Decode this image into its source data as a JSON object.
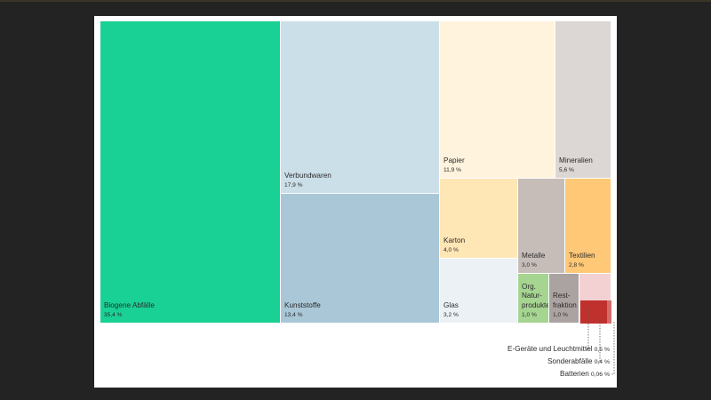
{
  "chart_data": {
    "type": "treemap",
    "items": [
      {
        "name": "Biogene Abfälle",
        "value_label": "35,4 %",
        "value": 35.4,
        "color": "#19d195"
      },
      {
        "name": "Verbundwaren",
        "value_label": "17,9 %",
        "value": 17.9,
        "color": "#cbdfe8"
      },
      {
        "name": "Kunststoffe",
        "value_label": "13,4 %",
        "value": 13.4,
        "color": "#a9c7d7"
      },
      {
        "name": "Papier",
        "value_label": "11,9 %",
        "value": 11.9,
        "color": "#fff3dd"
      },
      {
        "name": "Karton",
        "value_label": "4,0 %",
        "value": 4.0,
        "color": "#ffe6b5"
      },
      {
        "name": "Glas",
        "value_label": "3,2 %",
        "value": 3.2,
        "color": "#ebf1f5"
      },
      {
        "name": "Mineralien",
        "value_label": "5,6 %",
        "value": 5.6,
        "color": "#dcd6d4"
      },
      {
        "name": "Metalle",
        "value_label": "3,0 %",
        "value": 3.0,
        "color": "#c6bdb9"
      },
      {
        "name": "Textilien",
        "value_label": "2,8 %",
        "value": 2.8,
        "color": "#ffc877"
      },
      {
        "name": "Org. Natur-produkte",
        "value_label": "1,0 %",
        "value": 1.0,
        "color": "#a6d491"
      },
      {
        "name": "Rest-fraktion",
        "value_label": "1,0 %",
        "value": 1.0,
        "color": "#aba3a1"
      },
      {
        "name": "E-Geräte und Leuchtmittel",
        "value_label": "0,5 %",
        "value": 0.5,
        "color": "#f3d1d3"
      },
      {
        "name": "Sonderabfälle",
        "value_label": "0,4 %",
        "value": 0.4,
        "color": "#c0312d"
      },
      {
        "name": "Batterien",
        "value_label": "0,06 %",
        "value": 0.06,
        "color": "#d26d6a"
      }
    ]
  }
}
